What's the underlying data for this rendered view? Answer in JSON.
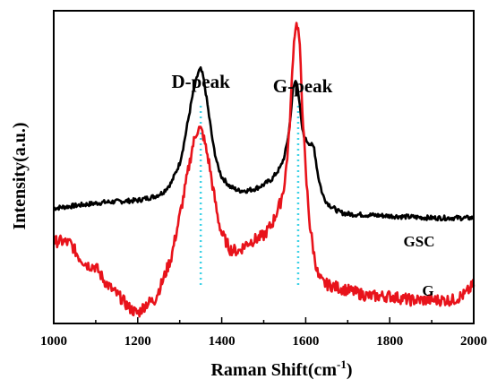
{
  "chart_data": {
    "type": "line",
    "xlabel": "Raman Shift(cm",
    "xlabel_sup": "-1",
    "xlabel_close": ")",
    "ylabel": "Intensity(a.u.)",
    "xlim": [
      1000,
      2000
    ],
    "ylim": [
      0,
      1.6
    ],
    "x_ticks": [
      1000,
      1200,
      1400,
      1600,
      1800,
      2000
    ],
    "y_ticks_shown": false,
    "grid": false,
    "series": [
      {
        "name": "GSC",
        "color": "#000000",
        "x": [
          1000,
          1040,
          1080,
          1120,
          1160,
          1200,
          1240,
          1260,
          1280,
          1300,
          1310,
          1320,
          1330,
          1340,
          1345,
          1350,
          1355,
          1360,
          1370,
          1380,
          1390,
          1400,
          1420,
          1440,
          1460,
          1480,
          1500,
          1520,
          1540,
          1550,
          1560,
          1565,
          1570,
          1575,
          1580,
          1585,
          1590,
          1595,
          1600,
          1605,
          1610,
          1615,
          1620,
          1625,
          1630,
          1640,
          1650,
          1660,
          1680,
          1700,
          1750,
          1800,
          1850,
          1900,
          1950,
          2000
        ],
        "y": [
          0.59,
          0.6,
          0.61,
          0.62,
          0.625,
          0.63,
          0.65,
          0.67,
          0.72,
          0.82,
          0.92,
          1.04,
          1.16,
          1.25,
          1.29,
          1.3,
          1.27,
          1.21,
          1.06,
          0.91,
          0.81,
          0.75,
          0.7,
          0.68,
          0.68,
          0.69,
          0.71,
          0.74,
          0.8,
          0.86,
          0.98,
          1.09,
          1.2,
          1.24,
          1.23,
          1.13,
          1.02,
          0.96,
          0.94,
          0.93,
          0.92,
          0.91,
          0.9,
          0.82,
          0.75,
          0.66,
          0.62,
          0.6,
          0.57,
          0.56,
          0.555,
          0.55,
          0.545,
          0.54,
          0.54,
          0.54
        ]
      },
      {
        "name": "G",
        "color": "#e8131b",
        "x": [
          1000,
          1020,
          1040,
          1060,
          1080,
          1100,
          1120,
          1140,
          1160,
          1180,
          1200,
          1220,
          1240,
          1260,
          1280,
          1300,
          1310,
          1320,
          1330,
          1340,
          1345,
          1350,
          1355,
          1360,
          1370,
          1380,
          1390,
          1400,
          1420,
          1440,
          1460,
          1480,
          1500,
          1520,
          1540,
          1550,
          1560,
          1565,
          1570,
          1575,
          1580,
          1585,
          1590,
          1595,
          1600,
          1610,
          1620,
          1630,
          1640,
          1650,
          1700,
          1750,
          1800,
          1850,
          1900,
          1950,
          1980,
          2000
        ],
        "y": [
          0.42,
          0.42,
          0.41,
          0.34,
          0.3,
          0.29,
          0.22,
          0.17,
          0.13,
          0.08,
          0.05,
          0.1,
          0.12,
          0.22,
          0.34,
          0.55,
          0.66,
          0.78,
          0.9,
          0.98,
          1.0,
          0.99,
          0.97,
          0.92,
          0.82,
          0.68,
          0.55,
          0.46,
          0.38,
          0.37,
          0.41,
          0.43,
          0.45,
          0.51,
          0.62,
          0.72,
          0.95,
          1.15,
          1.38,
          1.52,
          1.53,
          1.45,
          1.2,
          0.98,
          0.77,
          0.5,
          0.35,
          0.24,
          0.21,
          0.2,
          0.17,
          0.14,
          0.14,
          0.12,
          0.12,
          0.12,
          0.15,
          0.2
        ]
      }
    ],
    "annotations": [
      {
        "text": "D-peak",
        "x": 1350
      },
      {
        "text": "G-peak",
        "x": 1580
      }
    ],
    "reference_lines": [
      {
        "x": 1350,
        "color": "#3fd2e6",
        "style": "dotted"
      },
      {
        "x": 1582,
        "color": "#3fd2e6",
        "style": "dotted"
      }
    ]
  }
}
